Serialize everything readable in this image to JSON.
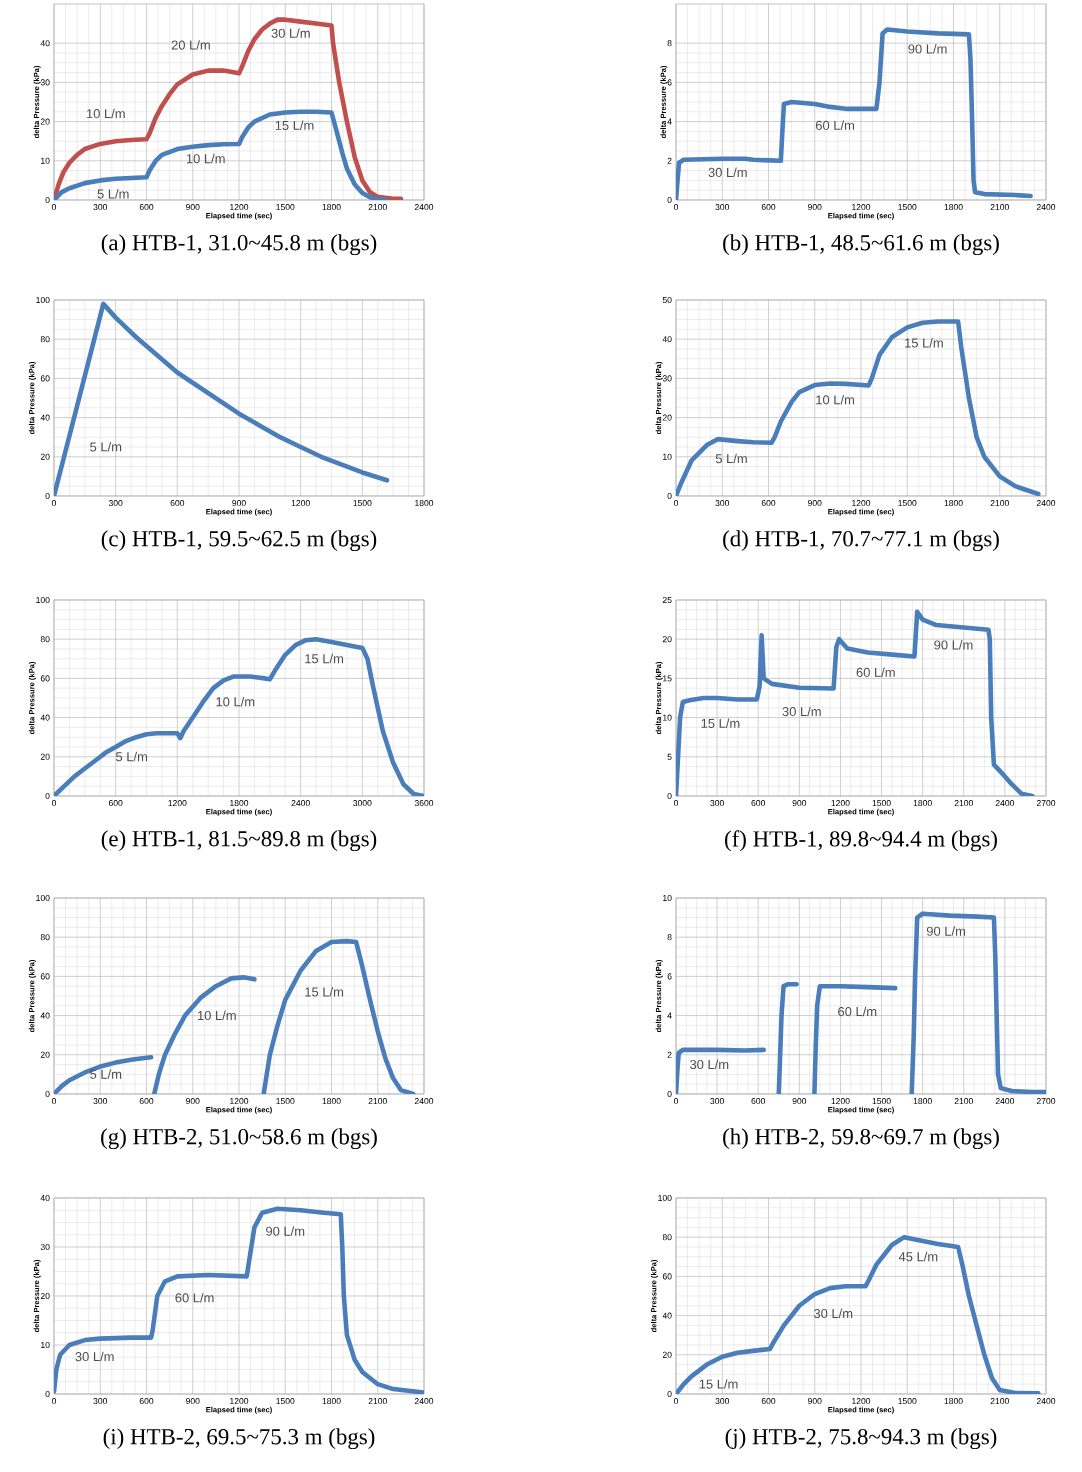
{
  "chart_data": [
    {
      "type": "line",
      "title": "(a) HTB-1, 31.0~45.8 m (bgs)",
      "xlabel": "Elapsed time (sec)",
      "ylabel": "delta Pressure  (kPa)",
      "xlim": [
        0,
        2400
      ],
      "ylim": [
        0,
        50
      ],
      "xticks": [
        0,
        300,
        600,
        900,
        1200,
        1500,
        1800,
        2100,
        2400
      ],
      "yticks": [
        0,
        10,
        20,
        30,
        40
      ],
      "grid": true,
      "series": [
        {
          "color": "#c0504d",
          "x": [
            0,
            30,
            60,
            100,
            150,
            200,
            300,
            400,
            500,
            600,
            620,
            660,
            700,
            750,
            800,
            900,
            1000,
            1100,
            1200,
            1220,
            1260,
            1300,
            1350,
            1400,
            1450,
            1500,
            1600,
            1700,
            1800,
            1810,
            1850,
            1900,
            1950,
            2000,
            2050,
            2100,
            2200,
            2250
          ],
          "values": [
            0,
            4,
            7,
            9.5,
            11.5,
            13,
            14.3,
            15,
            15.3,
            15.5,
            17,
            21,
            24,
            27,
            29.5,
            32,
            33,
            33,
            32.3,
            34,
            38,
            41,
            43.5,
            45,
            46,
            46,
            45.5,
            45,
            44.5,
            40,
            30,
            20,
            11,
            5,
            2,
            0.8,
            0.3,
            0.3
          ]
        },
        {
          "color": "#4a7ebb",
          "x": [
            0,
            50,
            100,
            200,
            300,
            400,
            500,
            600,
            620,
            660,
            700,
            800,
            900,
            1000,
            1100,
            1200,
            1220,
            1260,
            1300,
            1400,
            1500,
            1600,
            1700,
            1800,
            1830,
            1870,
            1900,
            1950,
            2000,
            2050,
            2100,
            2150
          ],
          "values": [
            0,
            2,
            3,
            4.3,
            5,
            5.4,
            5.6,
            5.8,
            7.5,
            10,
            11.5,
            13,
            13.6,
            14,
            14.2,
            14.3,
            16,
            18.5,
            20,
            21.8,
            22.3,
            22.5,
            22.5,
            22.3,
            18,
            12,
            8,
            4,
            1.8,
            0.7,
            0.2,
            0.1
          ]
        }
      ],
      "annotations": [
        "10 L/m",
        "20 L/m",
        "30 L/m",
        "5 L/m",
        "10 L/m",
        "15 L/m"
      ]
    },
    {
      "type": "line",
      "title": "(b) HTB-1, 48.5~61.6 m (bgs)",
      "xlabel": "Elapsed time (sec)",
      "ylabel": "delta Pressure  (kPa)",
      "xlim": [
        0,
        2400
      ],
      "ylim": [
        0,
        10
      ],
      "xticks": [
        0,
        300,
        600,
        900,
        1200,
        1500,
        1800,
        2100,
        2400
      ],
      "yticks": [
        0,
        2,
        4,
        6,
        8
      ],
      "grid": true,
      "series": [
        {
          "color": "#4a7ebb",
          "x": [
            0,
            10,
            20,
            50,
            300,
            450,
            500,
            680,
            690,
            700,
            750,
            900,
            1000,
            1100,
            1300,
            1320,
            1340,
            1370,
            1500,
            1700,
            1900,
            1910,
            1920,
            1930,
            1940,
            2000,
            2200,
            2300
          ],
          "values": [
            0,
            1,
            1.9,
            2.05,
            2.1,
            2.1,
            2.05,
            2.0,
            3.5,
            4.9,
            5.0,
            4.9,
            4.75,
            4.65,
            4.65,
            6,
            8.5,
            8.7,
            8.6,
            8.5,
            8.45,
            7.2,
            4.3,
            1,
            0.4,
            0.3,
            0.25,
            0.2
          ]
        }
      ],
      "annotations": [
        "30 L/m",
        "60 L/m",
        "90 L/m"
      ]
    },
    {
      "type": "line",
      "title": "(c) HTB-1, 59.5~62.5 m (bgs)",
      "xlabel": "Elapsed time (sec)",
      "ylabel": "delta Pressure  (kPa)",
      "xlim": [
        0,
        1800
      ],
      "ylim": [
        0,
        100
      ],
      "xticks": [
        0,
        300,
        600,
        900,
        1200,
        1500,
        1800
      ],
      "yticks": [
        0,
        20,
        40,
        60,
        80,
        100
      ],
      "grid": true,
      "series": [
        {
          "color": "#4a7ebb",
          "x": [
            0,
            240,
            300,
            400,
            500,
            600,
            700,
            800,
            900,
            1000,
            1100,
            1200,
            1300,
            1400,
            1500,
            1620
          ],
          "values": [
            0,
            98,
            91,
            81,
            72,
            63,
            56,
            49,
            42,
            36,
            30,
            25,
            20,
            16,
            12,
            8
          ]
        }
      ],
      "annotations": [
        "5 L/m"
      ]
    },
    {
      "type": "line",
      "title": "(d) HTB-1, 70.7~77.1 m (bgs)",
      "xlabel": "Elapsed time (sec)",
      "ylabel": "delta Pressure  (kPa)",
      "xlim": [
        0,
        2400
      ],
      "ylim": [
        0,
        50
      ],
      "xticks": [
        0,
        300,
        600,
        900,
        1200,
        1500,
        1800,
        2100,
        2400
      ],
      "yticks": [
        0,
        10,
        20,
        30,
        40,
        50
      ],
      "grid": true,
      "series": [
        {
          "color": "#4a7ebb",
          "x": [
            0,
            30,
            100,
            200,
            270,
            400,
            500,
            620,
            640,
            680,
            750,
            800,
            900,
            1000,
            1100,
            1250,
            1270,
            1320,
            1400,
            1500,
            1600,
            1700,
            1830,
            1850,
            1900,
            1950,
            2000,
            2100,
            2200,
            2350
          ],
          "values": [
            0,
            3,
            9,
            13,
            14.5,
            14,
            13.7,
            13.6,
            15,
            19,
            24,
            26.5,
            28.3,
            28.7,
            28.6,
            28.2,
            30,
            36,
            40.5,
            43,
            44.2,
            44.5,
            44.5,
            38,
            25,
            15,
            10,
            5,
            2.5,
            0.5
          ]
        }
      ],
      "annotations": [
        "5 L/m",
        "10 L/m",
        "15 L/m"
      ]
    },
    {
      "type": "line",
      "title": "(e) HTB-1, 81.5~89.8 m (bgs)",
      "xlabel": "Elapsed time (sec)",
      "ylabel": "delta Pressure  (kPa)",
      "xlim": [
        0,
        3600
      ],
      "ylim": [
        0,
        100
      ],
      "xticks": [
        0,
        600,
        1200,
        1800,
        2400,
        3000,
        3600
      ],
      "yticks": [
        0,
        20,
        40,
        60,
        80,
        100
      ],
      "grid": true,
      "series": [
        {
          "color": "#4a7ebb",
          "x": [
            0,
            100,
            200,
            300,
            400,
            500,
            600,
            700,
            800,
            900,
            1000,
            1100,
            1200,
            1230,
            1260,
            1350,
            1450,
            1550,
            1650,
            1750,
            1900,
            2050,
            2100,
            2150,
            2250,
            2350,
            2450,
            2550,
            2700,
            2850,
            3000,
            3050,
            3100,
            3150,
            3200,
            3300,
            3400,
            3500,
            3600
          ],
          "values": [
            0,
            5,
            10,
            14,
            18,
            22,
            25,
            28,
            30,
            31.5,
            32,
            32,
            32,
            29.5,
            33,
            40,
            48,
            55,
            59,
            61,
            61,
            60,
            59.5,
            64,
            72,
            77,
            79.5,
            80,
            78.5,
            77,
            75.5,
            70,
            57,
            45,
            33,
            17,
            6,
            1,
            0
          ]
        }
      ],
      "annotations": [
        "5 L/m",
        "10 L/m",
        "15 L/m"
      ]
    },
    {
      "type": "line",
      "title": "(f) HTB-1, 89.8~94.4 m (bgs)",
      "xlabel": "Elapsed time (sec)",
      "ylabel": "delta Pressure  (kPa)",
      "xlim": [
        0,
        2700
      ],
      "ylim": [
        0,
        25
      ],
      "xticks": [
        0,
        300,
        600,
        900,
        1200,
        1500,
        1800,
        2100,
        2400,
        2700
      ],
      "yticks": [
        0,
        5,
        10,
        15,
        20,
        25
      ],
      "grid": true,
      "series": [
        {
          "color": "#4a7ebb",
          "x": [
            0,
            15,
            30,
            50,
            100,
            200,
            300,
            450,
            590,
            610,
            625,
            640,
            700,
            900,
            1150,
            1170,
            1190,
            1250,
            1400,
            1600,
            1740,
            1760,
            1800,
            1900,
            2100,
            2280,
            2290,
            2300,
            2320,
            2400,
            2450,
            2520,
            2600
          ],
          "values": [
            0,
            5,
            10,
            12,
            12.2,
            12.5,
            12.5,
            12.3,
            12.3,
            14,
            20.5,
            15,
            14.3,
            13.8,
            13.7,
            19,
            20,
            18.8,
            18.3,
            18,
            17.8,
            23.5,
            22.5,
            21.8,
            21.5,
            21.2,
            20,
            10,
            4,
            2.5,
            1.5,
            0.3,
            0
          ]
        }
      ],
      "annotations": [
        "15 L/m",
        "30 L/m",
        "60 L/m",
        "90 L/m"
      ]
    },
    {
      "type": "line",
      "title": "(g) HTB-2, 51.0~58.6 m (bgs)",
      "xlabel": "Elapsed time (sec)",
      "ylabel": "delta Pressure  (kPa)",
      "xlim": [
        0,
        2400
      ],
      "ylim": [
        0,
        100
      ],
      "xticks": [
        0,
        300,
        600,
        900,
        1200,
        1500,
        1800,
        2100,
        2400
      ],
      "yticks": [
        0,
        20,
        40,
        60,
        80,
        100
      ],
      "grid": true,
      "series": [
        {
          "color": "#4a7ebb",
          "x": [
            0,
            50,
            100,
            200,
            300,
            400,
            500,
            600,
            630,
            640,
            650,
            680,
            720,
            780,
            850,
            950,
            1050,
            1150,
            1230,
            1300,
            1330,
            1360,
            1400,
            1450,
            1500,
            1600,
            1700,
            1800,
            1900,
            1960,
            2000,
            2050,
            2100,
            2150,
            2200,
            2250,
            2330
          ],
          "values": [
            0,
            4,
            7,
            11,
            14,
            16,
            17.5,
            18.5,
            18.7,
            null,
            0,
            10,
            20,
            30,
            40,
            49,
            55,
            59,
            59.5,
            58.5,
            null,
            0,
            20,
            35,
            48,
            63,
            73,
            77.5,
            78,
            77.5,
            65,
            48,
            32,
            18,
            8,
            2,
            0
          ]
        }
      ],
      "annotations": [
        "5 L/m",
        "10 L/m",
        "15 L/m"
      ]
    },
    {
      "type": "line",
      "title": "(h) HTB-2, 59.8~69.7 m (bgs)",
      "xlabel": "Elapsed time (sec)",
      "ylabel": "delta Pressure  (kPa)",
      "xlim": [
        0,
        2700
      ],
      "ylim": [
        0,
        10
      ],
      "xticks": [
        0,
        300,
        600,
        900,
        1200,
        1500,
        1800,
        2100,
        2400,
        2700
      ],
      "yticks": [
        0,
        2,
        4,
        6,
        8,
        10
      ],
      "grid": true,
      "series": [
        {
          "color": "#4a7ebb",
          "x": [
            0,
            10,
            20,
            50,
            300,
            500,
            640,
            700,
            750,
            760,
            770,
            785,
            820,
            880,
            950,
            1010,
            1020,
            1030,
            1050,
            1200,
            1400,
            1600,
            1680,
            1720,
            1735,
            1745,
            1760,
            1800,
            2000,
            2200,
            2320,
            2330,
            2340,
            2350,
            2370,
            2450,
            2600,
            2700
          ],
          "values": [
            0,
            1.2,
            2.1,
            2.25,
            2.25,
            2.22,
            2.25,
            null,
            0,
            2,
            4,
            5.5,
            5.6,
            5.6,
            null,
            0,
            2.5,
            4.5,
            5.5,
            5.5,
            5.45,
            5.4,
            null,
            0,
            3,
            6,
            9,
            9.2,
            9.1,
            9.05,
            9.0,
            7,
            4,
            1,
            0.3,
            0.15,
            0.1,
            0.1
          ]
        }
      ],
      "annotations": [
        "30 L/m",
        "60 L/m",
        "90 L/m"
      ]
    },
    {
      "type": "line",
      "title": "(i) HTB-2, 69.5~75.3 m (bgs)",
      "xlabel": "Elapsed time (sec)",
      "ylabel": "delta Pressure  (kPa)",
      "xlim": [
        0,
        2400
      ],
      "ylim": [
        0,
        40
      ],
      "xticks": [
        0,
        300,
        600,
        900,
        1200,
        1500,
        1800,
        2100,
        2400
      ],
      "yticks": [
        0,
        10,
        20,
        30,
        40
      ],
      "grid": true,
      "series": [
        {
          "color": "#4a7ebb",
          "x": [
            0,
            15,
            40,
            100,
            200,
            300,
            500,
            630,
            640,
            670,
            720,
            800,
            1000,
            1250,
            1265,
            1300,
            1350,
            1450,
            1600,
            1750,
            1860,
            1870,
            1880,
            1900,
            1950,
            2000,
            2100,
            2200,
            2400
          ],
          "values": [
            0.5,
            5,
            8,
            10,
            11,
            11.3,
            11.5,
            11.5,
            13,
            20,
            23,
            24,
            24.3,
            24,
            27,
            34,
            37,
            37.8,
            37.5,
            37,
            36.7,
            30,
            20,
            12,
            7,
            4.5,
            2,
            1,
            0.3
          ]
        }
      ],
      "annotations": [
        "30 L/m",
        "60 L/m",
        "90 L/m"
      ]
    },
    {
      "type": "line",
      "title": "(j) HTB-2, 75.8~94.3 m (bgs)",
      "xlabel": "Elapsed time (sec)",
      "ylabel": "delta Pressure  (kPa)",
      "xlim": [
        0,
        2400
      ],
      "ylim": [
        0,
        100
      ],
      "xticks": [
        0,
        300,
        600,
        900,
        1200,
        1500,
        1800,
        2100,
        2400
      ],
      "yticks": [
        0,
        20,
        40,
        60,
        80,
        100
      ],
      "grid": true,
      "series": [
        {
          "color": "#4a7ebb",
          "x": [
            0,
            50,
            100,
            200,
            300,
            400,
            500,
            610,
            630,
            700,
            800,
            900,
            1000,
            1100,
            1230,
            1250,
            1300,
            1400,
            1480,
            1600,
            1700,
            1830,
            1860,
            1900,
            1950,
            2000,
            2050,
            2100,
            2200,
            2350
          ],
          "values": [
            0,
            5,
            9,
            15,
            19,
            21,
            22,
            23,
            26,
            35,
            45,
            51,
            54,
            55,
            55,
            58,
            66,
            76,
            80,
            78,
            76.5,
            75,
            65,
            50,
            35,
            20,
            8,
            2,
            0.5,
            0.3
          ]
        }
      ],
      "annotations": [
        "15 L/m",
        "30 L/m",
        "45 L/m"
      ]
    }
  ]
}
